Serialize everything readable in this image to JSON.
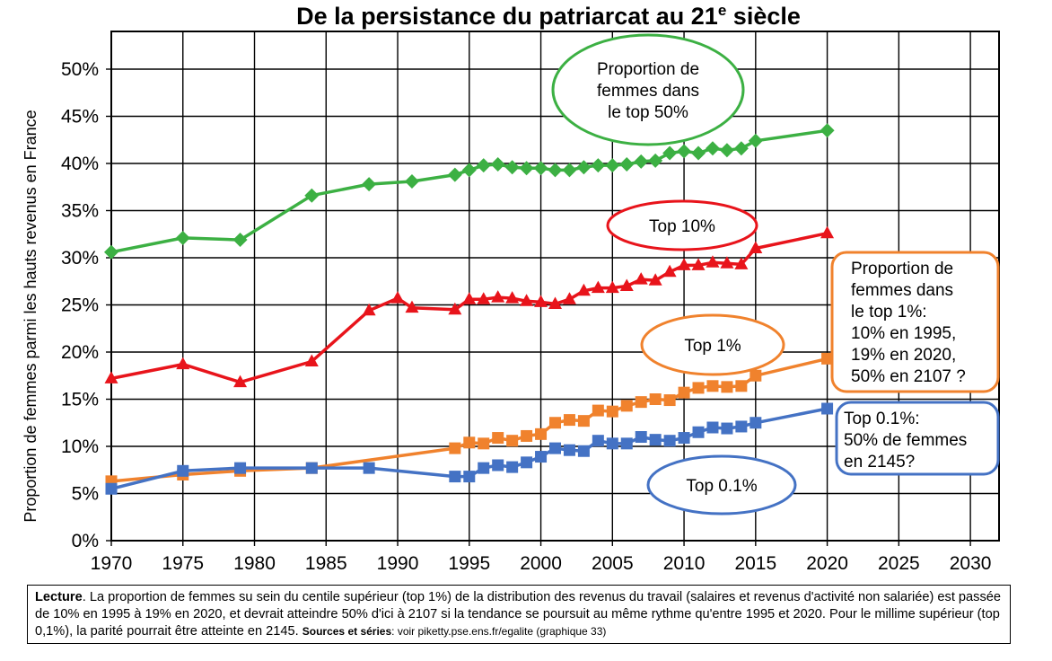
{
  "chart_data": {
    "type": "line",
    "title": "De la persistance du patriarcat au 21",
    "title_sup": "e",
    "title_end": " siècle",
    "ylabel": "Proportion de femmes parmi les hauts revenus en France",
    "xlabel": "",
    "xlim": [
      1970,
      2032
    ],
    "ylim": [
      0,
      0.54
    ],
    "x_ticks": [
      1970,
      1975,
      1980,
      1985,
      1990,
      1995,
      2000,
      2005,
      2010,
      2015,
      2020,
      2025,
      2030
    ],
    "y_ticks": [
      0,
      0.05,
      0.1,
      0.15,
      0.2,
      0.25,
      0.3,
      0.35,
      0.4,
      0.45,
      0.5
    ],
    "y_tick_labels": [
      "0%",
      "5%",
      "10%",
      "15%",
      "20%",
      "25%",
      "30%",
      "35%",
      "40%",
      "45%",
      "50%"
    ],
    "grid": true,
    "series": [
      {
        "name": "Proportion de femmes dans le top 50%",
        "color": "#3cb043",
        "marker": "diamond",
        "points": [
          [
            1970,
            0.306
          ],
          [
            1975,
            0.321
          ],
          [
            1979,
            0.319
          ],
          [
            1984,
            0.366
          ],
          [
            1988,
            0.378
          ],
          [
            1991,
            0.381
          ],
          [
            1994,
            0.388
          ],
          [
            1995,
            0.393
          ],
          [
            1996,
            0.398
          ],
          [
            1997,
            0.399
          ],
          [
            1998,
            0.396
          ],
          [
            1999,
            0.395
          ],
          [
            2000,
            0.395
          ],
          [
            2001,
            0.393
          ],
          [
            2002,
            0.393
          ],
          [
            2003,
            0.396
          ],
          [
            2004,
            0.398
          ],
          [
            2005,
            0.398
          ],
          [
            2006,
            0.399
          ],
          [
            2007,
            0.402
          ],
          [
            2008,
            0.403
          ],
          [
            2009,
            0.411
          ],
          [
            2010,
            0.413
          ],
          [
            2011,
            0.411
          ],
          [
            2012,
            0.416
          ],
          [
            2013,
            0.414
          ],
          [
            2014,
            0.416
          ],
          [
            2015,
            0.424
          ],
          [
            2020,
            0.435
          ]
        ]
      },
      {
        "name": "Top 10%",
        "color": "#e8141b",
        "marker": "triangle",
        "points": [
          [
            1970,
            0.172
          ],
          [
            1975,
            0.187
          ],
          [
            1979,
            0.168
          ],
          [
            1984,
            0.19
          ],
          [
            1988,
            0.244
          ],
          [
            1990,
            0.257
          ],
          [
            1991,
            0.247
          ],
          [
            1994,
            0.245
          ],
          [
            1995,
            0.256
          ],
          [
            1996,
            0.256
          ],
          [
            1997,
            0.258
          ],
          [
            1998,
            0.257
          ],
          [
            1999,
            0.254
          ],
          [
            2000,
            0.253
          ],
          [
            2001,
            0.251
          ],
          [
            2002,
            0.256
          ],
          [
            2003,
            0.265
          ],
          [
            2004,
            0.268
          ],
          [
            2005,
            0.268
          ],
          [
            2006,
            0.27
          ],
          [
            2007,
            0.277
          ],
          [
            2008,
            0.276
          ],
          [
            2009,
            0.285
          ],
          [
            2010,
            0.292
          ],
          [
            2011,
            0.292
          ],
          [
            2012,
            0.295
          ],
          [
            2013,
            0.294
          ],
          [
            2014,
            0.293
          ],
          [
            2015,
            0.31
          ],
          [
            2020,
            0.326
          ]
        ]
      },
      {
        "name": "Top 1%",
        "color": "#f0822d",
        "marker": "square",
        "points": [
          [
            1970,
            0.063
          ],
          [
            1975,
            0.07
          ],
          [
            1979,
            0.074
          ],
          [
            1984,
            0.077
          ],
          [
            1994,
            0.098
          ],
          [
            1995,
            0.104
          ],
          [
            1996,
            0.103
          ],
          [
            1997,
            0.109
          ],
          [
            1998,
            0.106
          ],
          [
            1999,
            0.111
          ],
          [
            2000,
            0.113
          ],
          [
            2001,
            0.125
          ],
          [
            2002,
            0.128
          ],
          [
            2003,
            0.127
          ],
          [
            2004,
            0.138
          ],
          [
            2005,
            0.137
          ],
          [
            2006,
            0.143
          ],
          [
            2007,
            0.147
          ],
          [
            2008,
            0.15
          ],
          [
            2009,
            0.149
          ],
          [
            2010,
            0.157
          ],
          [
            2011,
            0.162
          ],
          [
            2012,
            0.164
          ],
          [
            2013,
            0.163
          ],
          [
            2014,
            0.164
          ],
          [
            2015,
            0.175
          ],
          [
            2020,
            0.193
          ]
        ]
      },
      {
        "name": "Top 0.1%",
        "color": "#4472c4",
        "marker": "square",
        "points": [
          [
            1970,
            0.055
          ],
          [
            1975,
            0.074
          ],
          [
            1979,
            0.077
          ],
          [
            1984,
            0.077
          ],
          [
            1988,
            0.077
          ],
          [
            1994,
            0.068
          ],
          [
            1995,
            0.068
          ],
          [
            1996,
            0.077
          ],
          [
            1997,
            0.08
          ],
          [
            1998,
            0.078
          ],
          [
            1999,
            0.083
          ],
          [
            2000,
            0.089
          ],
          [
            2001,
            0.098
          ],
          [
            2002,
            0.096
          ],
          [
            2003,
            0.095
          ],
          [
            2004,
            0.106
          ],
          [
            2005,
            0.103
          ],
          [
            2006,
            0.103
          ],
          [
            2007,
            0.11
          ],
          [
            2008,
            0.107
          ],
          [
            2009,
            0.106
          ],
          [
            2010,
            0.109
          ],
          [
            2011,
            0.115
          ],
          [
            2012,
            0.12
          ],
          [
            2013,
            0.119
          ],
          [
            2014,
            0.121
          ],
          [
            2015,
            0.125
          ],
          [
            2020,
            0.14
          ]
        ]
      }
    ],
    "annotations": [
      {
        "series": "Proportion de femmes dans le top 50%",
        "shape": "ellipse",
        "color": "#3cb043",
        "lines": [
          "Proportion de",
          "femmes dans",
          "le top 50%"
        ]
      },
      {
        "series": "Top 10%",
        "shape": "ellipse",
        "color": "#e8141b",
        "lines": [
          "Top 10%"
        ]
      },
      {
        "series": "Top 1%",
        "shape": "ellipse",
        "color": "#f0822d",
        "lines": [
          "Top 1%"
        ]
      },
      {
        "series": "Top 0.1%",
        "shape": "ellipse",
        "color": "#4472c4",
        "lines": [
          "Top 0.1%"
        ]
      },
      {
        "series": "Top 1%",
        "shape": "box",
        "color": "#f0822d",
        "lines": [
          "Proportion de",
          "femmes dans",
          "le top 1%:",
          "10% en 1995,",
          "19% en 2020,",
          "50% en 2107 ?"
        ]
      },
      {
        "series": "Top 0.1%",
        "shape": "box",
        "color": "#4472c4",
        "lines": [
          "Top 0.1%:",
          "50% de femmes",
          "en 2145?"
        ]
      }
    ]
  },
  "note": {
    "lead": "Lecture",
    "body": ". La proportion de femmes su sein du centile supérieur (top 1%) de la distribution des revenus du travail (salaires et revenus d'activité non salariée) est passée de 10% en 1995 à 19% en 2020, et devrait atteindre 50% d'ici à 2107 si la tendance se poursuit au même rythme qu'entre 1995 et 2020. Pour le millime supérieur (top 0,1%), la parité pourrait être atteinte en 2145.",
    "sources_label": "Sources et séries",
    "sources_text": ": voir piketty.pse.ens.fr/egalite (graphique 33)"
  }
}
